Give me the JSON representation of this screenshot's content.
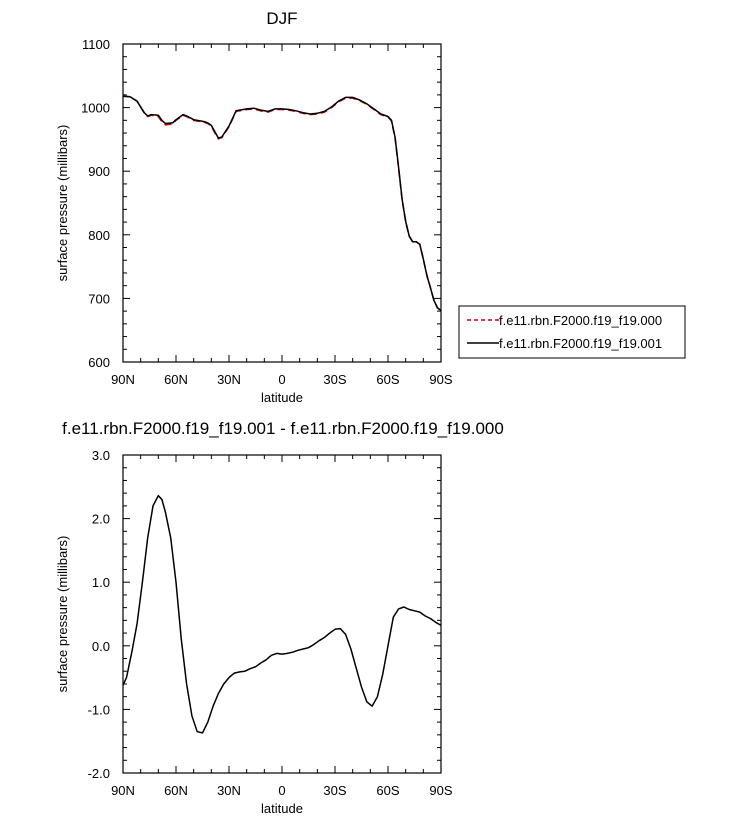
{
  "chart_data": [
    {
      "type": "line",
      "title": "DJF",
      "xlabel": "latitude",
      "ylabel": "surface pressure (millibars)",
      "xlim": [
        90,
        -90
      ],
      "ylim": [
        600,
        1100
      ],
      "xticks": [
        90,
        60,
        30,
        0,
        -30,
        -60,
        -90
      ],
      "xtick_labels": [
        "90N",
        "60N",
        "30N",
        "0",
        "30S",
        "60S",
        "90S"
      ],
      "yticks": [
        600,
        700,
        800,
        900,
        1000,
        1100
      ],
      "ytick_labels": [
        "600",
        "700",
        "800",
        "900",
        "1000",
        "1100"
      ],
      "grid": false,
      "legend": "outside-right",
      "x": [
        90,
        86,
        82,
        78,
        76,
        74,
        70,
        68,
        66,
        62,
        60,
        56,
        54,
        50,
        46,
        44,
        42,
        40,
        38,
        36,
        34,
        30,
        26,
        20,
        16,
        12,
        8,
        4,
        0,
        -4,
        -8,
        -12,
        -16,
        -20,
        -24,
        -28,
        -32,
        -36,
        -40,
        -44,
        -48,
        -52,
        -56,
        -60,
        -62,
        -64,
        -66,
        -68,
        -70,
        -72,
        -74,
        -76,
        -78,
        -80,
        -82,
        -84,
        -86,
        -88,
        -90
      ],
      "series": [
        {
          "name": "f.e11.rbn.F2000.f19_f19.000",
          "color": "#cc0000",
          "dash": "dashed",
          "values": [
            1018,
            1017,
            1010,
            992,
            986,
            988,
            986,
            978,
            973,
            974,
            980,
            988,
            986,
            980,
            978,
            977,
            975,
            971,
            960,
            951,
            953,
            970,
            994,
            997,
            998,
            995,
            993,
            997,
            997,
            996,
            994,
            991,
            989,
            990,
            993,
            1000,
            1009,
            1015,
            1015,
            1011,
            1005,
            997,
            989,
            985,
            979,
            952,
            905,
            855,
            820,
            798,
            789,
            789,
            785,
            762,
            736,
            717,
            697,
            685,
            681
          ]
        },
        {
          "name": "f.e11.rbn.F2000.f19_f19.001",
          "color": "#000000",
          "dash": "solid",
          "values": [
            1018,
            1017,
            1010,
            992,
            987,
            989,
            988,
            980,
            975,
            976,
            981,
            989,
            987,
            981,
            979,
            978,
            976,
            972,
            962,
            952,
            954,
            971,
            995,
            998,
            999,
            996,
            994,
            998,
            998,
            997,
            995,
            992,
            990,
            991,
            994,
            1001,
            1010,
            1016,
            1016,
            1012,
            1006,
            998,
            990,
            986,
            980,
            953,
            906,
            856,
            821,
            798,
            789,
            789,
            785,
            762,
            736,
            717,
            697,
            685,
            681
          ]
        }
      ]
    },
    {
      "type": "line",
      "title": "f.e11.rbn.F2000.f19_f19.001 - f.e11.rbn.F2000.f19_f19.000",
      "xlabel": "latitude",
      "ylabel": "surface pressure (millibars)",
      "xlim": [
        90,
        -90
      ],
      "ylim": [
        -2.0,
        3.0
      ],
      "xticks": [
        90,
        60,
        30,
        0,
        -30,
        -60,
        -90
      ],
      "xtick_labels": [
        "90N",
        "60N",
        "30N",
        "0",
        "30S",
        "60S",
        "90S"
      ],
      "yticks": [
        -2,
        -1,
        0,
        1,
        2,
        3
      ],
      "ytick_labels": [
        "-2.0",
        "-1.0",
        "0.0",
        "1.0",
        "2.0",
        "3.0"
      ],
      "grid": false,
      "legend": "none",
      "x": [
        90,
        88,
        85,
        82,
        79,
        76,
        73,
        70,
        68,
        66,
        63,
        60,
        57,
        54,
        51,
        48,
        45,
        42,
        39,
        36,
        33,
        30,
        27,
        24,
        21,
        18,
        15,
        12,
        9,
        6,
        3,
        0,
        -3,
        -6,
        -9,
        -12,
        -15,
        -18,
        -21,
        -24,
        -27,
        -30,
        -33,
        -36,
        -39,
        -42,
        -45,
        -48,
        -51,
        -54,
        -57,
        -60,
        -63,
        -66,
        -69,
        -72,
        -75,
        -78,
        -81,
        -84,
        -87,
        -90
      ],
      "series": [
        {
          "name": "",
          "color": "#000000",
          "dash": "solid",
          "values": [
            -0.62,
            -0.5,
            -0.1,
            0.35,
            1.0,
            1.7,
            2.2,
            2.36,
            2.3,
            2.1,
            1.7,
            1.0,
            0.1,
            -0.6,
            -1.1,
            -1.35,
            -1.37,
            -1.2,
            -0.95,
            -0.75,
            -0.6,
            -0.5,
            -0.43,
            -0.41,
            -0.4,
            -0.36,
            -0.33,
            -0.27,
            -0.22,
            -0.15,
            -0.12,
            -0.13,
            -0.12,
            -0.1,
            -0.07,
            -0.05,
            -0.03,
            0.02,
            0.08,
            0.13,
            0.2,
            0.26,
            0.27,
            0.18,
            -0.05,
            -0.35,
            -0.65,
            -0.88,
            -0.95,
            -0.8,
            -0.45,
            0.0,
            0.45,
            0.58,
            0.61,
            0.57,
            0.55,
            0.53,
            0.47,
            0.43,
            0.37,
            0.32
          ]
        }
      ]
    }
  ]
}
